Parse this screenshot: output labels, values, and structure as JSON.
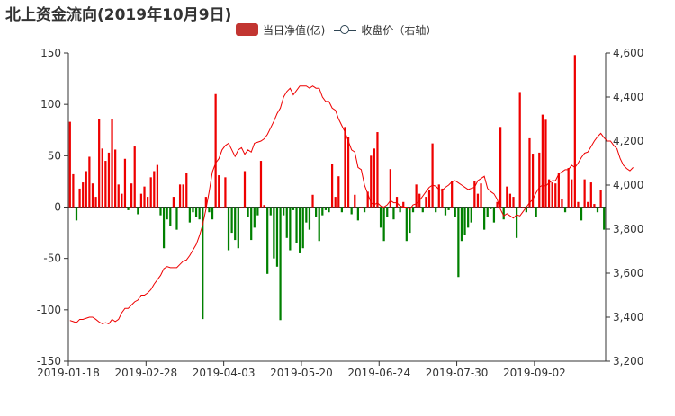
{
  "title": "北上资金流向(2019年10月9日)",
  "legend": {
    "net": "当日净值(亿)",
    "close": "收盘价（右轴）"
  },
  "colors": {
    "positive": "#ee0000",
    "negative": "#008000",
    "line": "#ee0000",
    "legend_bar": "#c23531",
    "legend_line": "#2f4554",
    "axis": "#333333"
  },
  "chart_data": {
    "type": "bar",
    "x_tick_labels": [
      "2019-01-18",
      "2019-02-28",
      "2019-04-03",
      "2019-05-20",
      "2019-06-24",
      "2019-07-30",
      "2019-09-02"
    ],
    "y_left": {
      "min": -150,
      "max": 150,
      "ticks": [
        "150",
        "100",
        "50",
        "0",
        "-50",
        "-100",
        "-150"
      ]
    },
    "y_right": {
      "min": 3200,
      "max": 4600,
      "ticks": [
        "4,600",
        "4,400",
        "4,200",
        "4,000",
        "3,800",
        "3,600",
        "3,400",
        "3,200"
      ]
    },
    "series": [
      {
        "name": "当日净值(亿)",
        "type": "bar",
        "values": [
          83,
          32,
          -13,
          18,
          24,
          35,
          49,
          23,
          10,
          86,
          57,
          45,
          53,
          86,
          56,
          22,
          13,
          47,
          -3,
          23,
          59,
          -7,
          13,
          20,
          10,
          29,
          35,
          41,
          -8,
          -40,
          -12,
          -18,
          10,
          -22,
          22,
          22,
          33,
          -15,
          -5,
          -10,
          -12,
          -109,
          10,
          -5,
          -12,
          110,
          31,
          0,
          29,
          -42,
          -25,
          -32,
          -40,
          0,
          35,
          -10,
          -32,
          -20,
          -8,
          45,
          2,
          -65,
          -8,
          -50,
          -58,
          -110,
          -8,
          -30,
          -42,
          -3,
          -35,
          -45,
          -40,
          -15,
          -22,
          12,
          -10,
          -33,
          -8,
          -3,
          -5,
          42,
          10,
          30,
          -5,
          78,
          68,
          -7,
          12,
          -13,
          0,
          -5,
          15,
          50,
          57,
          73,
          -20,
          -33,
          -10,
          37,
          -12,
          10,
          -5,
          5,
          -33,
          -25,
          -5,
          22,
          13,
          -5,
          10,
          17,
          62,
          -5,
          22,
          18,
          -8,
          -3,
          25,
          -10,
          -68,
          -33,
          -27,
          -20,
          -15,
          25,
          13,
          23,
          -22,
          -10,
          -2,
          -15,
          5,
          78,
          -12,
          20,
          13,
          10,
          -30,
          112,
          0,
          -5,
          67,
          52,
          -10,
          53,
          90,
          85,
          27,
          24,
          23,
          33,
          8,
          -5,
          38,
          27,
          148,
          5,
          -13,
          27,
          5,
          24,
          3,
          -5,
          17,
          -22
        ],
        "source": "estimated"
      },
      {
        "name": "收盘价（右轴）",
        "type": "line",
        "values": [
          3385,
          3380,
          3375,
          3390,
          3390,
          3395,
          3400,
          3400,
          3390,
          3378,
          3370,
          3375,
          3370,
          3390,
          3380,
          3390,
          3420,
          3440,
          3440,
          3455,
          3470,
          3478,
          3500,
          3500,
          3510,
          3525,
          3550,
          3570,
          3590,
          3620,
          3630,
          3625,
          3625,
          3625,
          3640,
          3655,
          3660,
          3680,
          3705,
          3730,
          3770,
          3820,
          3890,
          3970,
          4060,
          4100,
          4120,
          4160,
          4180,
          4190,
          4160,
          4130,
          4160,
          4170,
          4140,
          4160,
          4150,
          4190,
          4195,
          4200,
          4210,
          4230,
          4260,
          4290,
          4325,
          4350,
          4400,
          4425,
          4440,
          4410,
          4430,
          4450,
          4450,
          4450,
          4440,
          4450,
          4440,
          4440,
          4400,
          4380,
          4380,
          4350,
          4340,
          4300,
          4270,
          4240,
          4200,
          4160,
          4150,
          4080,
          4070,
          4000,
          3960,
          3920,
          3910,
          3920,
          3905,
          3900,
          3910,
          3930,
          3920,
          3920,
          3905,
          3900,
          3900,
          3890,
          3910,
          3915,
          3930,
          3950,
          3970,
          3990,
          4000,
          3995,
          3980,
          3975,
          3990,
          4000,
          4015,
          4020,
          4010,
          4000,
          3990,
          3980,
          3985,
          3990,
          4020,
          4030,
          4040,
          3985,
          3970,
          3960,
          3935,
          3890,
          3860,
          3870,
          3860,
          3850,
          3865,
          3860,
          3880,
          3900,
          3920,
          3935,
          3965,
          3990,
          4000,
          3995,
          4010,
          4020,
          4020,
          4050,
          4060,
          4070,
          4070,
          4090,
          4080,
          4100,
          4125,
          4145,
          4150,
          4175,
          4200,
          4220,
          4235,
          4215,
          4200,
          4200,
          4180,
          4165,
          4120,
          4090,
          4075,
          4065,
          4080
        ],
        "source": "estimated"
      }
    ]
  }
}
